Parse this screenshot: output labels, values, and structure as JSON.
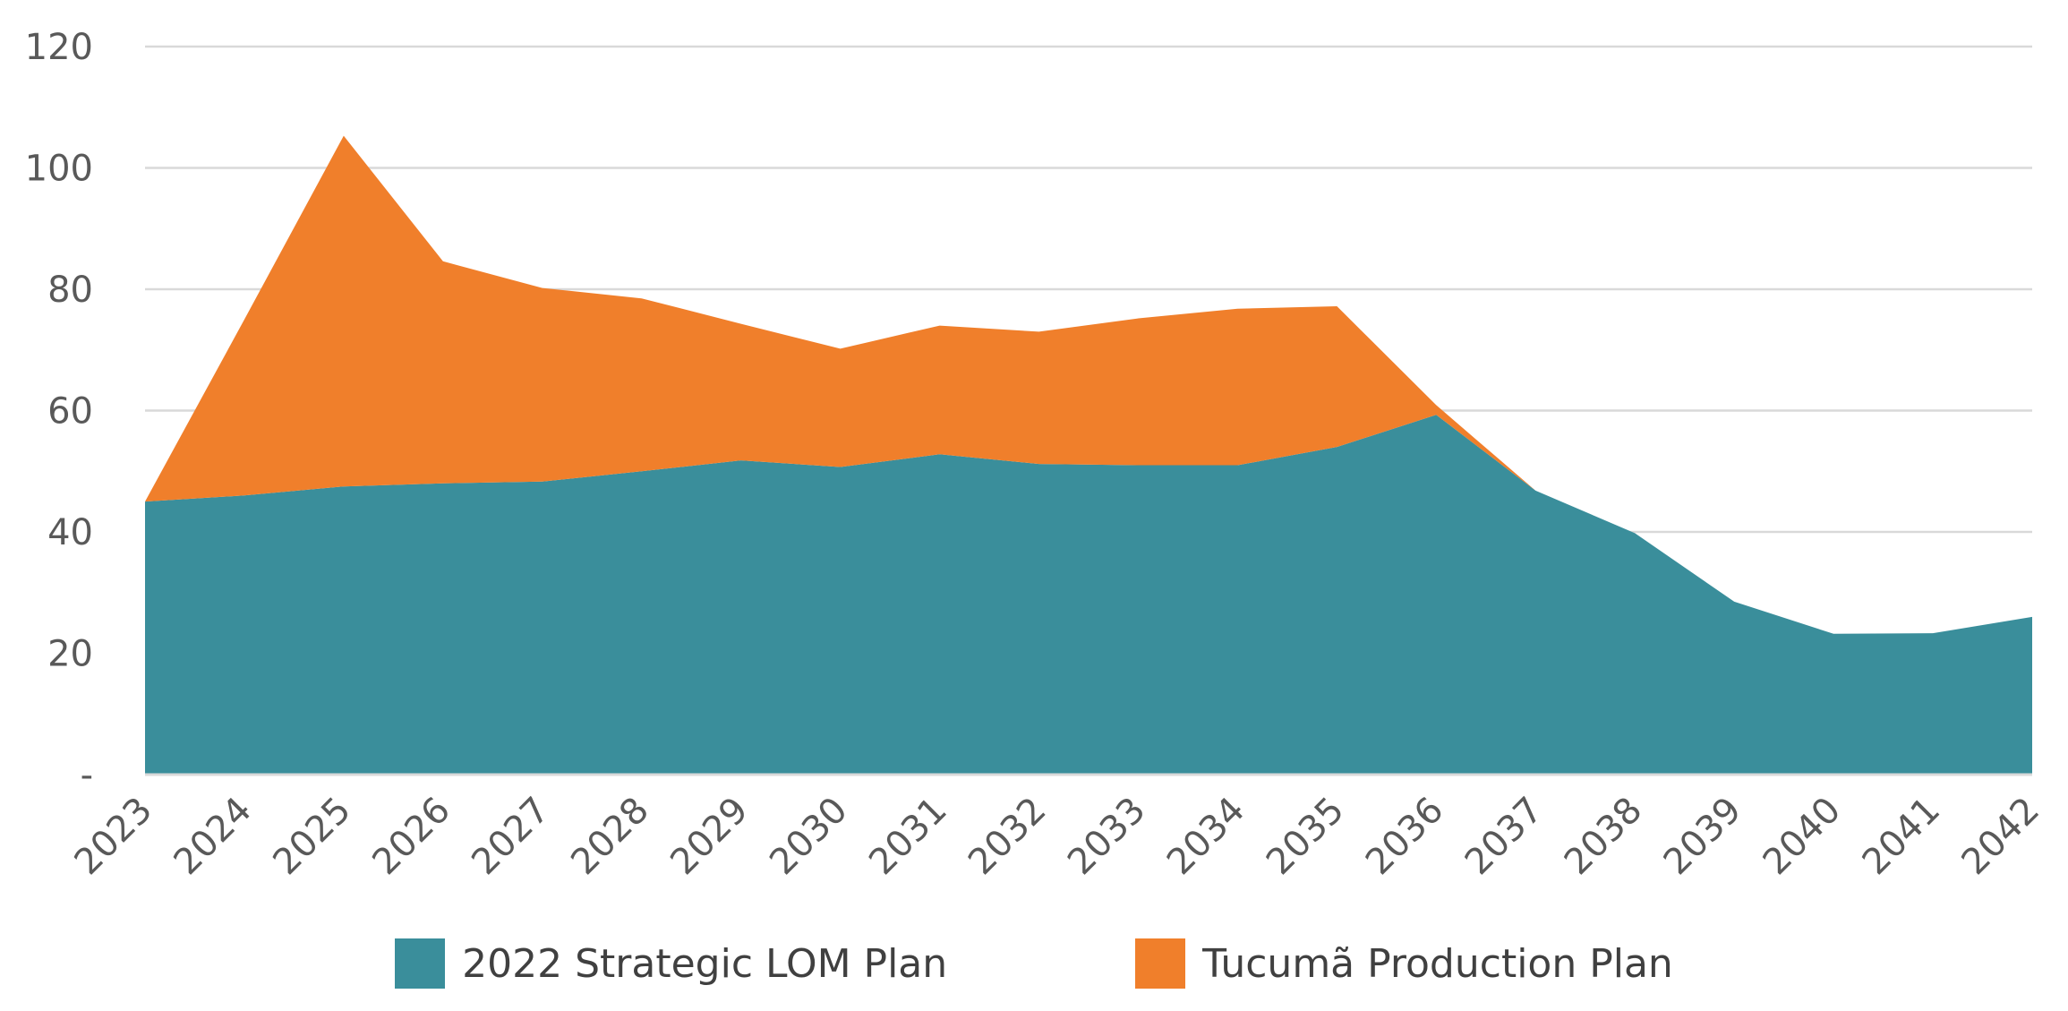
{
  "chart_data": {
    "type": "area",
    "stacked": true,
    "categories": [
      "2023",
      "2024",
      "2025",
      "2026",
      "2027",
      "2028",
      "2029",
      "2030",
      "2031",
      "2032",
      "2033",
      "2034",
      "2035",
      "2036",
      "2037",
      "2038",
      "2039",
      "2040",
      "2041",
      "2042"
    ],
    "series": [
      {
        "name": "2022 Strategic LOM Plan",
        "color": "#3A8E9B",
        "values": [
          45,
          46,
          47.5,
          48,
          48.3,
          50,
          51.8,
          50.7,
          52.8,
          51.2,
          51,
          51,
          54,
          59.3,
          46.8,
          39.8,
          28.5,
          23.2,
          23.3,
          26
        ]
      },
      {
        "name": "Tucumã Production Plan",
        "color": "#F07F2B",
        "values": [
          0,
          29,
          57.8,
          36.6,
          31.9,
          28.5,
          22.5,
          19.5,
          21.2,
          21.8,
          24.2,
          25.8,
          23.2,
          1.6,
          0,
          0,
          0,
          0,
          0,
          0
        ]
      }
    ],
    "y_ticks": [
      "-",
      "20",
      "40",
      "60",
      "80",
      "100",
      "120"
    ],
    "ylim": [
      0,
      120
    ],
    "grid": true,
    "legend_position": "bottom",
    "title": "",
    "xlabel": "",
    "ylabel": ""
  }
}
